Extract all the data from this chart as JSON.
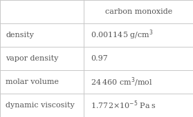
{
  "title_col": "carbon monoxide",
  "rows": [
    {
      "label": "density",
      "value": "0.001145 g/cm$^{3}$"
    },
    {
      "label": "vapor density",
      "value": "0.97"
    },
    {
      "label": "molar volume",
      "value": "24 460 cm$^{3}$/mol"
    },
    {
      "label": "dynamic viscosity",
      "value": "1.772×10$^{-5}$ Pa s"
    }
  ],
  "bg_color": "#ffffff",
  "border_color": "#c8c8c8",
  "text_color": "#555555",
  "font_size": 8.0,
  "fig_width": 2.79,
  "fig_height": 1.7,
  "dpi": 100,
  "col_split": 0.435
}
